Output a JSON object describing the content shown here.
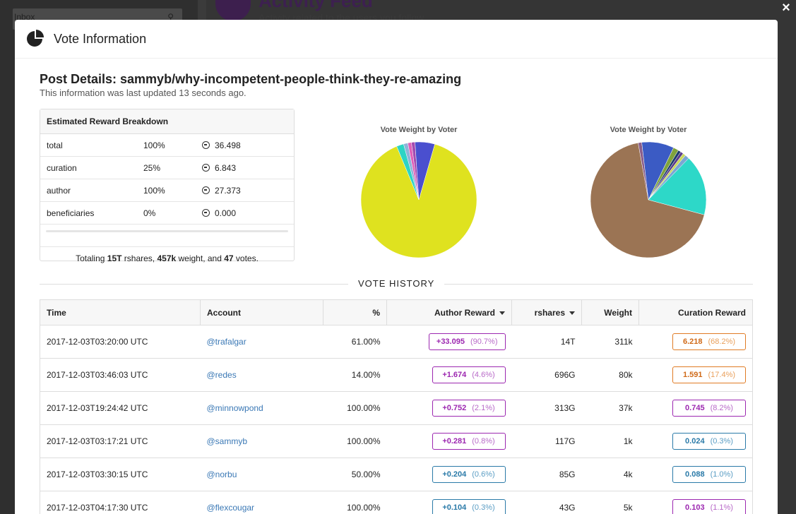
{
  "background": {
    "inbox_label": "Inbox",
    "feed_title": "Activity Feed",
    "feed_subtitle": "Activity related to the users you follow"
  },
  "modal": {
    "title": "Vote Information",
    "close_label": "×",
    "post_title": "Post Details: sammyb/why-incompetent-people-think-they-re-amazing",
    "updated_text": "This information was last updated 13 seconds ago."
  },
  "breakdown": {
    "heading": "Estimated Reward Breakdown",
    "rows": [
      {
        "label": "total",
        "pct": "100%",
        "value": "36.498"
      },
      {
        "label": "curation",
        "pct": "25%",
        "value": "6.843"
      },
      {
        "label": "author",
        "pct": "100%",
        "value": "27.373"
      },
      {
        "label": "beneficiaries",
        "pct": "0%",
        "value": "0.000"
      }
    ],
    "totaling_prefix": "Totaling ",
    "rshares": "15T",
    "rshares_suffix": " rshares, ",
    "weight": "457k",
    "weight_suffix": " weight, and ",
    "votes": "47",
    "votes_suffix": " votes."
  },
  "pies": [
    {
      "title": "Vote Weight by Voter",
      "slices": [
        {
          "value": 89.3,
          "color": "#dfe21f"
        },
        {
          "value": 2.0,
          "color": "#2dd4c4"
        },
        {
          "value": 1.2,
          "color": "#8fb3d9"
        },
        {
          "value": 1.0,
          "color": "#e05eb8"
        },
        {
          "value": 1.0,
          "color": "#a34bb0"
        },
        {
          "value": 5.5,
          "color": "#4a4fcf"
        }
      ]
    },
    {
      "title": "Vote Weight by Voter",
      "slices": [
        {
          "value": 68.0,
          "color": "#9b7454"
        },
        {
          "value": 1.0,
          "color": "#8a5e8a"
        },
        {
          "value": 9.0,
          "color": "#3b5bc4"
        },
        {
          "value": 1.5,
          "color": "#7fa33c"
        },
        {
          "value": 0.8,
          "color": "#1e3c6e"
        },
        {
          "value": 0.8,
          "color": "#5a3c8c"
        },
        {
          "value": 0.8,
          "color": "#c9d85c"
        },
        {
          "value": 1.2,
          "color": "#7aa6d4"
        },
        {
          "value": 16.9,
          "color": "#2dd8c8"
        }
      ]
    }
  ],
  "vote_history": {
    "label": "VOTE HISTORY",
    "columns": [
      "Time",
      "Account",
      "%",
      "Author Reward",
      "rshares",
      "Weight",
      "Curation Reward"
    ],
    "rows": [
      {
        "time": "2017-12-03T03:20:00 UTC",
        "account": "@trafalgar",
        "pct": "61.00%",
        "author_amt": "+33.095",
        "author_pct": "(90.7%)",
        "author_style": "p-purple",
        "rshares": "14T",
        "weight": "311k",
        "cur_amt": "6.218",
        "cur_pct": "(68.2%)",
        "cur_style": "p-orange"
      },
      {
        "time": "2017-12-03T03:46:03 UTC",
        "account": "@redes",
        "pct": "14.00%",
        "author_amt": "+1.674",
        "author_pct": "(4.6%)",
        "author_style": "p-purple",
        "rshares": "696G",
        "weight": "80k",
        "cur_amt": "1.591",
        "cur_pct": "(17.4%)",
        "cur_style": "p-orange"
      },
      {
        "time": "2017-12-03T19:24:42 UTC",
        "account": "@minnowpond",
        "pct": "100.00%",
        "author_amt": "+0.752",
        "author_pct": "(2.1%)",
        "author_style": "p-purple",
        "rshares": "313G",
        "weight": "37k",
        "cur_amt": "0.745",
        "cur_pct": "(8.2%)",
        "cur_style": "p-purple"
      },
      {
        "time": "2017-12-03T03:17:21 UTC",
        "account": "@sammyb",
        "pct": "100.00%",
        "author_amt": "+0.281",
        "author_pct": "(0.8%)",
        "author_style": "p-purple",
        "rshares": "117G",
        "weight": "1k",
        "cur_amt": "0.024",
        "cur_pct": "(0.3%)",
        "cur_style": "p-blue"
      },
      {
        "time": "2017-12-03T03:30:15 UTC",
        "account": "@norbu",
        "pct": "50.00%",
        "author_amt": "+0.204",
        "author_pct": "(0.6%)",
        "author_style": "p-blue",
        "rshares": "85G",
        "weight": "4k",
        "cur_amt": "0.088",
        "cur_pct": "(1.0%)",
        "cur_style": "p-blue"
      },
      {
        "time": "2017-12-03T04:17:30 UTC",
        "account": "@flexcougar",
        "pct": "100.00%",
        "author_amt": "+0.104",
        "author_pct": "(0.3%)",
        "author_style": "p-blue",
        "rshares": "43G",
        "weight": "5k",
        "cur_amt": "0.103",
        "cur_pct": "(1.1%)",
        "cur_style": "p-purple"
      }
    ]
  }
}
